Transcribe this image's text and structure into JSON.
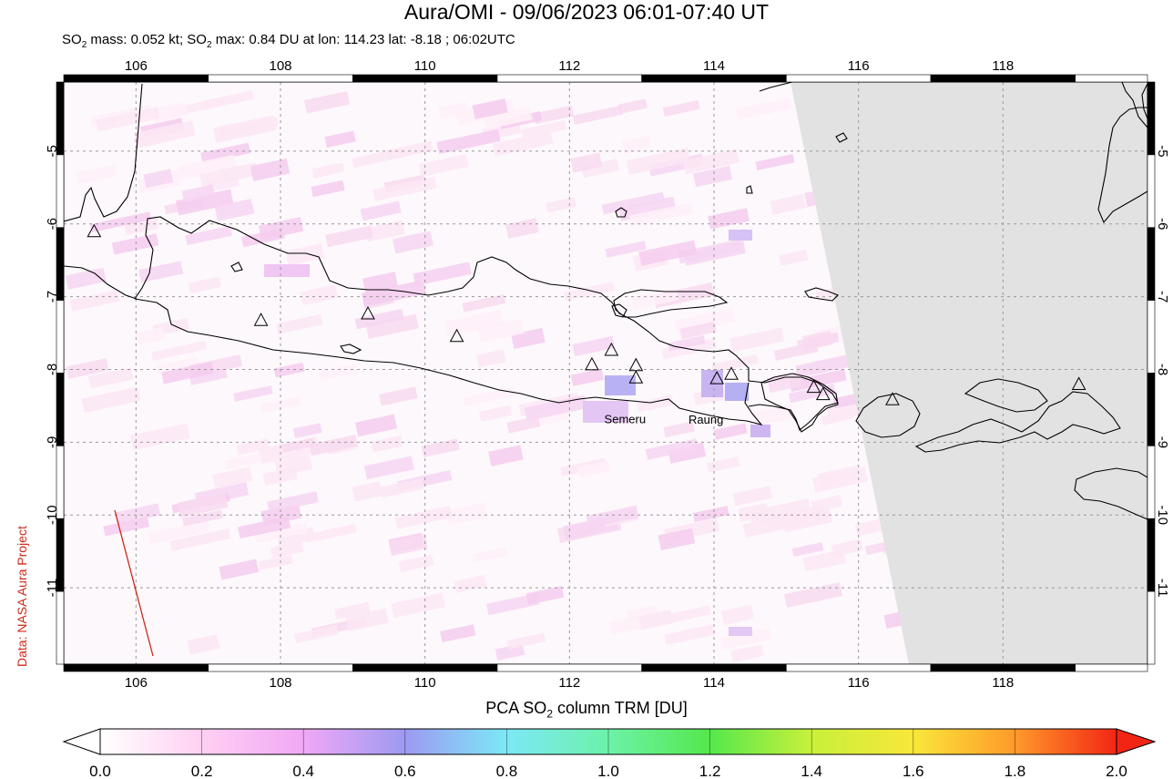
{
  "header": {
    "title": "Aura/OMI - 09/06/2023 06:01-07:40 UT",
    "subtitle_prefix": "SO",
    "subtitle_mass": " mass: 0.052 kt; SO",
    "subtitle_rest": " max: 0.84 DU at lon: 114.23 lat: -8.18 ; 06:02UTC",
    "subscript": "2"
  },
  "credit": "Data: NASA Aura Project",
  "map": {
    "lon_range": [
      105.0,
      120.0
    ],
    "lat_range": [
      -12.05,
      -4.05
    ],
    "lon_ticks": [
      "106",
      "108",
      "110",
      "112",
      "114",
      "116",
      "118"
    ],
    "lat_ticks": [
      "-5",
      "-6",
      "-7",
      "-8",
      "-9",
      "-10",
      "-11"
    ],
    "volcano_labels": [
      {
        "name": "Semeru",
        "lon": 112.92,
        "lat": -8.11
      },
      {
        "name": "Raung",
        "lon": 114.04,
        "lat": -8.12
      }
    ],
    "volcanoes": [
      {
        "lon": 105.42,
        "lat": -6.1
      },
      {
        "lon": 107.73,
        "lat": -7.32
      },
      {
        "lon": 109.21,
        "lat": -7.23
      },
      {
        "lon": 110.44,
        "lat": -7.54
      },
      {
        "lon": 112.31,
        "lat": -7.93
      },
      {
        "lon": 112.58,
        "lat": -7.73
      },
      {
        "lon": 112.92,
        "lat": -7.94
      },
      {
        "lon": 112.92,
        "lat": -8.11
      },
      {
        "lon": 114.04,
        "lat": -8.12
      },
      {
        "lon": 114.24,
        "lat": -8.06
      },
      {
        "lon": 115.38,
        "lat": -8.24
      },
      {
        "lon": 115.51,
        "lat": -8.34
      },
      {
        "lon": 116.47,
        "lat": -8.41
      },
      {
        "lon": 119.05,
        "lat": -8.2
      }
    ],
    "no_data_color": "#e2e2e2",
    "coast_color": "#000000",
    "grid_color": "#999999",
    "track_color": "#cc2a1a"
  },
  "colorbar": {
    "label_prefix": "PCA SO",
    "label_suffix": " column TRM [DU]",
    "subscript": "2",
    "ticks": [
      "0.0",
      "0.2",
      "0.4",
      "0.6",
      "0.8",
      "1.0",
      "1.2",
      "1.4",
      "1.6",
      "1.8",
      "2.0"
    ],
    "range": [
      0.0,
      2.0
    ],
    "stops": [
      "#ffffff",
      "#ffd0f2",
      "#f0a8f5",
      "#9d9af2",
      "#7ce8f7",
      "#6cf2a9",
      "#55e84c",
      "#c8f03a",
      "#f9e73a",
      "#ff9a2a",
      "#f22515"
    ]
  }
}
